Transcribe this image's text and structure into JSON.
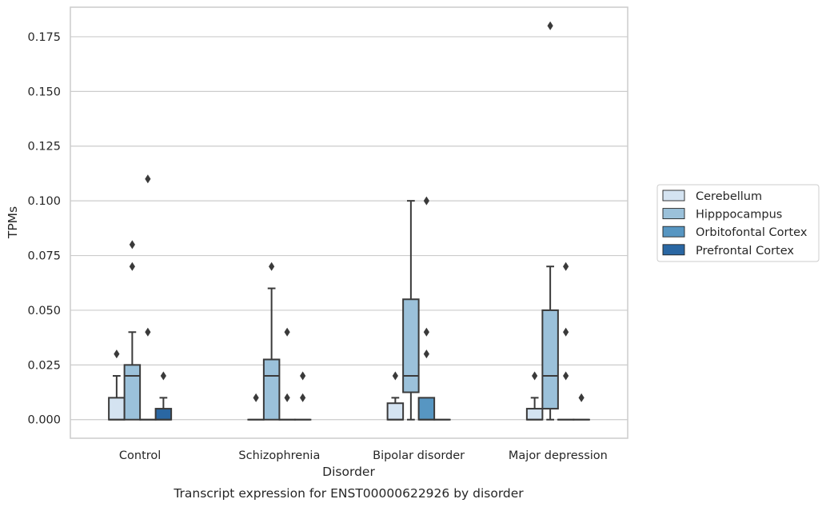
{
  "chart_data": {
    "type": "box",
    "title": "",
    "caption": "Transcript expression for ENST00000622926 by disorder",
    "xlabel": "Disorder",
    "ylabel": "TPMs",
    "ylim": [
      -0.0085,
      0.1885
    ],
    "yticks": [
      "0.000",
      "0.025",
      "0.050",
      "0.075",
      "0.100",
      "0.125",
      "0.150",
      "0.175"
    ],
    "ytick_values": [
      0,
      0.025,
      0.05,
      0.075,
      0.1,
      0.125,
      0.15,
      0.175
    ],
    "grid": "horizontal",
    "legend_position": "right",
    "categories": [
      "Control",
      "Schizophrenia",
      "Bipolar disorder",
      "Major depression"
    ],
    "series": [
      {
        "name": "Cerebellum",
        "color": "#d4e3f1",
        "boxes": [
          {
            "q1": 0,
            "median": 0,
            "q3": 0.01,
            "whisker_low": 0,
            "whisker_high": 0.02,
            "outliers": [
              0.03
            ]
          },
          {
            "q1": 0,
            "median": 0,
            "q3": 0,
            "whisker_low": 0,
            "whisker_high": 0,
            "outliers": [
              0.01
            ]
          },
          {
            "q1": 0,
            "median": 0,
            "q3": 0.0075,
            "whisker_low": 0,
            "whisker_high": 0.01,
            "outliers": [
              0.02
            ]
          },
          {
            "q1": 0,
            "median": 0,
            "q3": 0.005,
            "whisker_low": 0,
            "whisker_high": 0.01,
            "outliers": [
              0.02
            ]
          }
        ]
      },
      {
        "name": "Hipppocampus",
        "color": "#9bc1da",
        "boxes": [
          {
            "q1": 0,
            "median": 0.02,
            "q3": 0.025,
            "whisker_low": 0,
            "whisker_high": 0.04,
            "outliers": [
              0.07,
              0.08
            ]
          },
          {
            "q1": 0,
            "median": 0.02,
            "q3": 0.0275,
            "whisker_low": 0,
            "whisker_high": 0.06,
            "outliers": [
              0.07
            ]
          },
          {
            "q1": 0.0125,
            "median": 0.02,
            "q3": 0.055,
            "whisker_low": 0,
            "whisker_high": 0.1,
            "outliers": []
          },
          {
            "q1": 0.005,
            "median": 0.02,
            "q3": 0.05,
            "whisker_low": 0,
            "whisker_high": 0.07,
            "outliers": [
              0.18
            ]
          }
        ]
      },
      {
        "name": "Orbitofontal Cortex",
        "color": "#5796c2",
        "boxes": [
          {
            "q1": 0,
            "median": 0,
            "q3": 0,
            "whisker_low": 0,
            "whisker_high": 0,
            "outliers": [
              0.04,
              0.11
            ]
          },
          {
            "q1": 0,
            "median": 0,
            "q3": 0,
            "whisker_low": 0,
            "whisker_high": 0,
            "outliers": [
              0.01,
              0.04
            ]
          },
          {
            "q1": 0,
            "median": 0,
            "q3": 0.01,
            "whisker_low": 0,
            "whisker_high": 0.01,
            "outliers": [
              0.03,
              0.04,
              0.1
            ]
          },
          {
            "q1": 0,
            "median": 0,
            "q3": 0,
            "whisker_low": 0,
            "whisker_high": 0,
            "outliers": [
              0.02,
              0.04,
              0.07
            ]
          }
        ]
      },
      {
        "name": "Prefrontal Cortex",
        "color": "#2a67a3",
        "boxes": [
          {
            "q1": 0,
            "median": 0,
            "q3": 0.005,
            "whisker_low": 0,
            "whisker_high": 0.01,
            "outliers": [
              0.02
            ]
          },
          {
            "q1": 0,
            "median": 0,
            "q3": 0,
            "whisker_low": 0,
            "whisker_high": 0,
            "outliers": [
              0.01,
              0.02
            ]
          },
          {
            "q1": 0,
            "median": 0,
            "q3": 0,
            "whisker_low": 0,
            "whisker_high": 0,
            "outliers": []
          },
          {
            "q1": 0,
            "median": 0,
            "q3": 0,
            "whisker_low": 0,
            "whisker_high": 0,
            "outliers": [
              0.01
            ]
          }
        ]
      }
    ]
  }
}
